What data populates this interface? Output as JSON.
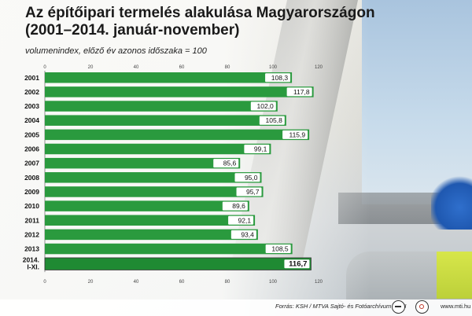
{
  "title_lines": [
    "Az építőipari termelés alakulása Magyarországon",
    "(2001–2014. január-november)"
  ],
  "subtitle": "volumenindex, előző év azonos időszaka = 100",
  "footer": {
    "source": "Forrás: KSH / MTVA Sajtó- és Fotóarchívum / MTI",
    "url": "www.mti.hu"
  },
  "colors": {
    "bar": "#2a9a3e",
    "bar_highlight": "#1f8a33",
    "label_box": "#ffffff",
    "axis": "#666666"
  },
  "chart_data": {
    "type": "bar",
    "orientation": "horizontal",
    "categories": [
      "2001",
      "2002",
      "2003",
      "2004",
      "2005",
      "2006",
      "2007",
      "2008",
      "2009",
      "2010",
      "2011",
      "2012",
      "2013",
      "2014.\nI-XI."
    ],
    "values": [
      108.3,
      117.8,
      102.0,
      105.8,
      115.9,
      99.1,
      85.6,
      95.0,
      95.7,
      89.6,
      92.1,
      93.4,
      108.5,
      116.7
    ],
    "value_labels": [
      "108,3",
      "117,8",
      "102,0",
      "105,8",
      "115,9",
      "99,1",
      "85,6",
      "95,0",
      "95,7",
      "89,6",
      "92,1",
      "93,4",
      "108,5",
      "116,7"
    ],
    "x_ticks": [
      "0",
      "20",
      "40",
      "60",
      "80",
      "100",
      "120"
    ],
    "xlim": [
      0,
      120
    ],
    "highlight_last": true,
    "grid": false,
    "legend": "none",
    "title": "Az építőipari termelés alakulása Magyarországon (2001–2014. január-november)",
    "subtitle": "volumenindex, előző év azonos időszaka = 100"
  }
}
